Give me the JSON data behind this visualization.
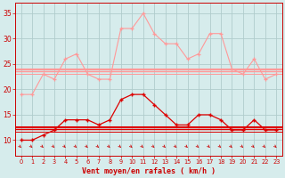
{
  "background_color": "#d6ecec",
  "grid_color": "#b0cccc",
  "title": "Vent moyen/en rafales ( km/h )",
  "x_labels": [
    "0",
    "1",
    "2",
    "3",
    "4",
    "5",
    "6",
    "7",
    "8",
    "9",
    "10",
    "11",
    "12",
    "13",
    "14",
    "15",
    "16",
    "17",
    "18",
    "19",
    "20",
    "21",
    "22",
    "23"
  ],
  "hours": [
    0,
    1,
    2,
    3,
    4,
    5,
    6,
    7,
    8,
    9,
    10,
    11,
    12,
    13,
    14,
    15,
    16,
    17,
    18,
    19,
    20,
    21,
    22,
    23
  ],
  "ylim": [
    7,
    37
  ],
  "yticks": [
    10,
    15,
    20,
    25,
    30,
    35
  ],
  "rafales_line": [
    19,
    19,
    23,
    22,
    26,
    27,
    23,
    22,
    22,
    32,
    32,
    35,
    31,
    29,
    29,
    26,
    27,
    31,
    31,
    24,
    23,
    26,
    22,
    23
  ],
  "rafales_color": "#ff9999",
  "hline_rafales": [
    24.0,
    23.5,
    23.0
  ],
  "hline_rafales_color": "#ff9999",
  "vent_moyen_line": [
    10,
    10,
    11,
    12,
    14,
    14,
    14,
    13,
    14,
    18,
    19,
    19,
    17,
    15,
    13,
    13,
    15,
    15,
    14,
    12,
    12,
    14,
    12,
    12
  ],
  "vent_moyen_color": "#dd0000",
  "hline_vent": [
    12.5,
    12.1,
    11.7
  ],
  "hline_vent_color": "#dd0000",
  "arrow_color": "#cc0000",
  "tick_color": "#cc0000",
  "spine_color": "#cc0000"
}
